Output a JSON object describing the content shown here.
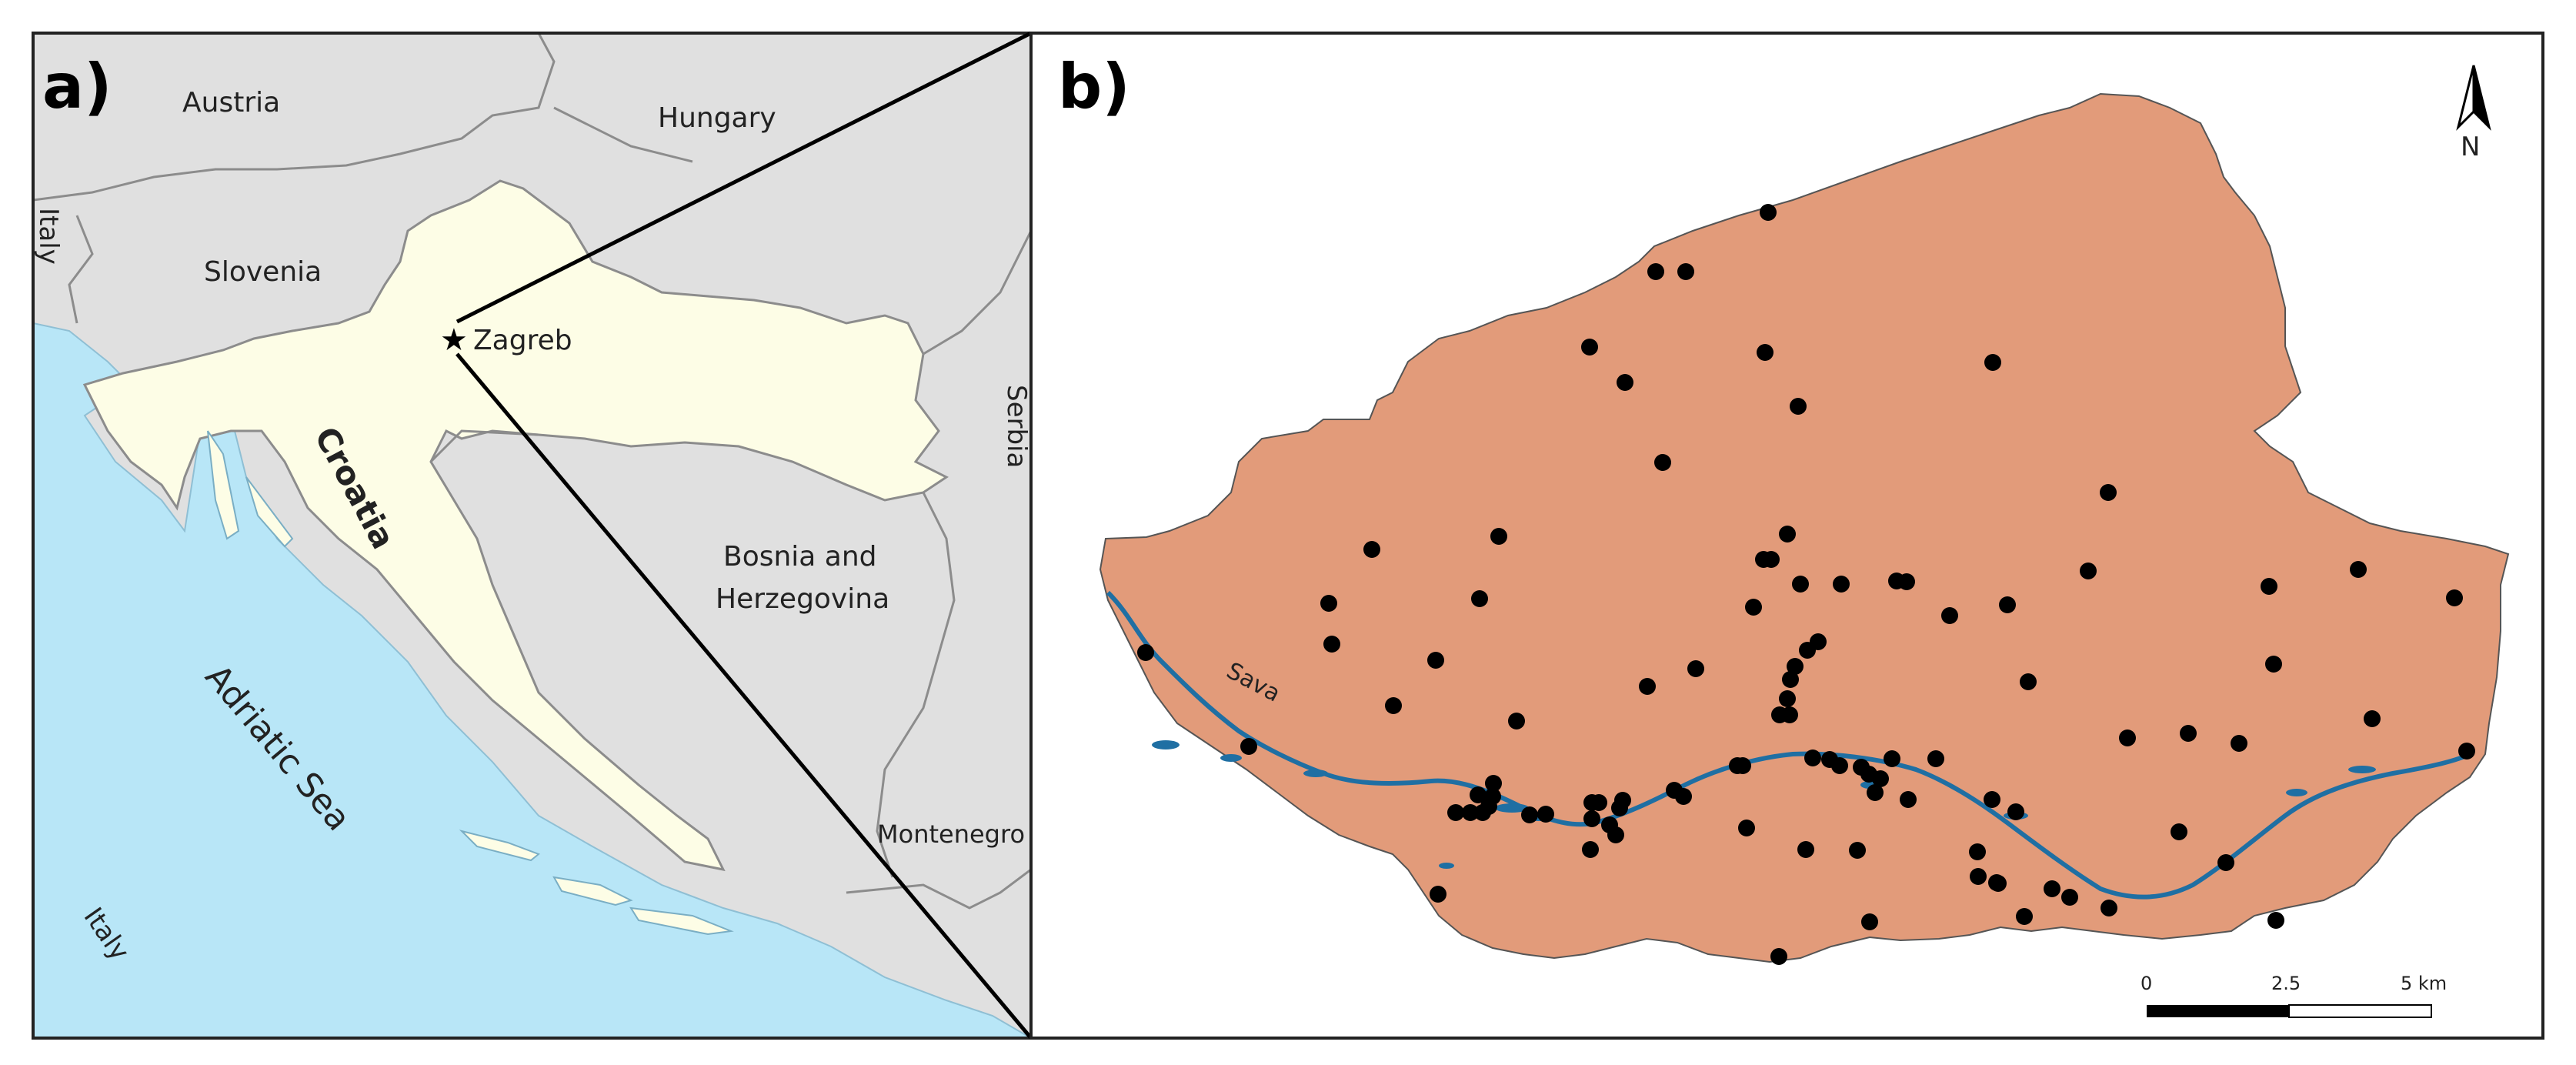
{
  "panels": {
    "a": "a)",
    "b": "b)"
  },
  "panel_a": {
    "countries": {
      "austria": "Austria",
      "hungary": "Hungary",
      "slovenia": "Slovenia",
      "italy_north": "Italy",
      "italy_south": "Italy",
      "serbia": "Serbia",
      "croatia": "Croatia",
      "bosnia_line1": "Bosnia and",
      "bosnia_line2": "Herzegovina",
      "montenegro": "Montenegro"
    },
    "sea": "Adriatic Sea",
    "city": "Zagreb",
    "colors": {
      "land": "#e0e0e0",
      "croatia": "#fdfde6",
      "sea": "#b8e6f7",
      "border": "#8c8c8c"
    }
  },
  "panel_b": {
    "river": "Sava",
    "north": "N",
    "scale": {
      "ticks": [
        "0",
        "2.5",
        "5 km"
      ]
    },
    "colors": {
      "area": "#e29b7a",
      "river": "#1f6fa3",
      "points": "#000000"
    },
    "sample_points": [
      [
        2298,
        276
      ],
      [
        2152,
        353
      ],
      [
        2191,
        353
      ],
      [
        2066,
        451
      ],
      [
        2294,
        458
      ],
      [
        2590,
        471
      ],
      [
        2112,
        497
      ],
      [
        2337,
        528
      ],
      [
        2161,
        601
      ],
      [
        2740,
        640
      ],
      [
        1783,
        714
      ],
      [
        1948,
        697
      ],
      [
        2323,
        694
      ],
      [
        2292,
        727
      ],
      [
        2302,
        727
      ],
      [
        1727,
        784
      ],
      [
        1923,
        778
      ],
      [
        2340,
        759
      ],
      [
        2393,
        759
      ],
      [
        2465,
        755
      ],
      [
        2478,
        756
      ],
      [
        2714,
        742
      ],
      [
        2949,
        762
      ],
      [
        3065,
        740
      ],
      [
        3190,
        777
      ],
      [
        2279,
        789
      ],
      [
        2534,
        800
      ],
      [
        2609,
        786
      ],
      [
        1731,
        837
      ],
      [
        1866,
        858
      ],
      [
        2363,
        834
      ],
      [
        2349,
        845
      ],
      [
        2333,
        866
      ],
      [
        2327,
        883
      ],
      [
        2204,
        869
      ],
      [
        2141,
        892
      ],
      [
        1811,
        917
      ],
      [
        2323,
        908
      ],
      [
        2636,
        886
      ],
      [
        2955,
        863
      ],
      [
        1489,
        848
      ],
      [
        1623,
        970
      ],
      [
        1971,
        937
      ],
      [
        2313,
        929
      ],
      [
        2326,
        929
      ],
      [
        2765,
        959
      ],
      [
        2844,
        953
      ],
      [
        2910,
        966
      ],
      [
        3083,
        934
      ],
      [
        3206,
        976
      ],
      [
        2258,
        995
      ],
      [
        2265,
        995
      ],
      [
        2356,
        985
      ],
      [
        2378,
        987
      ],
      [
        2391,
        995
      ],
      [
        2459,
        986
      ],
      [
        2516,
        986
      ],
      [
        2419,
        997
      ],
      [
        2444,
        1012
      ],
      [
        2429,
        1006
      ],
      [
        1941,
        1018
      ],
      [
        1940,
        1035
      ],
      [
        1927,
        1056
      ],
      [
        1911,
        1056
      ],
      [
        1892,
        1056
      ],
      [
        1921,
        1033
      ],
      [
        2069,
        1043
      ],
      [
        2078,
        1043
      ],
      [
        2109,
        1040
      ],
      [
        2009,
        1058
      ],
      [
        1988,
        1059
      ],
      [
        1935,
        1048
      ],
      [
        2105,
        1050
      ],
      [
        2176,
        1027
      ],
      [
        2188,
        1035
      ],
      [
        2437,
        1030
      ],
      [
        2480,
        1039
      ],
      [
        2589,
        1039
      ],
      [
        2620,
        1055
      ],
      [
        2069,
        1064
      ],
      [
        2092,
        1072
      ],
      [
        2100,
        1085
      ],
      [
        2270,
        1076
      ],
      [
        2832,
        1081
      ],
      [
        2067,
        1104
      ],
      [
        2347,
        1104
      ],
      [
        2414,
        1105
      ],
      [
        2570,
        1107
      ],
      [
        2571,
        1139
      ],
      [
        2595,
        1147
      ],
      [
        2597,
        1148
      ],
      [
        2667,
        1155
      ],
      [
        2690,
        1166
      ],
      [
        2741,
        1180
      ],
      [
        2893,
        1121
      ],
      [
        1869,
        1162
      ],
      [
        2430,
        1198
      ],
      [
        2631,
        1191
      ],
      [
        2958,
        1196
      ],
      [
        2312,
        1243
      ]
    ]
  }
}
